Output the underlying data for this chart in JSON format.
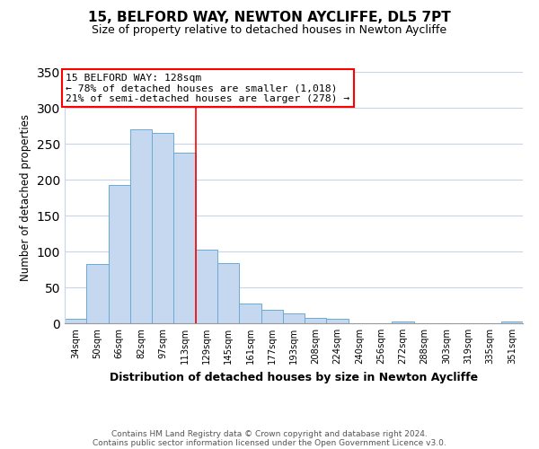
{
  "title": "15, BELFORD WAY, NEWTON AYCLIFFE, DL5 7PT",
  "subtitle": "Size of property relative to detached houses in Newton Aycliffe",
  "xlabel": "Distribution of detached houses by size in Newton Aycliffe",
  "ylabel": "Number of detached properties",
  "bar_labels": [
    "34sqm",
    "50sqm",
    "66sqm",
    "82sqm",
    "97sqm",
    "113sqm",
    "129sqm",
    "145sqm",
    "161sqm",
    "177sqm",
    "193sqm",
    "208sqm",
    "224sqm",
    "240sqm",
    "256sqm",
    "272sqm",
    "288sqm",
    "303sqm",
    "319sqm",
    "335sqm",
    "351sqm"
  ],
  "bar_values": [
    6,
    83,
    193,
    270,
    265,
    237,
    103,
    84,
    27,
    19,
    14,
    7,
    6,
    0,
    0,
    2,
    0,
    0,
    0,
    0,
    2
  ],
  "bar_color": "#c5d8f0",
  "bar_edge_color": "#6aaad4",
  "vline_x": 5.5,
  "vline_color": "red",
  "annotation_title": "15 BELFORD WAY: 128sqm",
  "annotation_line1": "← 78% of detached houses are smaller (1,018)",
  "annotation_line2": "21% of semi-detached houses are larger (278) →",
  "ylim": [
    0,
    350
  ],
  "yticks": [
    0,
    50,
    100,
    150,
    200,
    250,
    300,
    350
  ],
  "footer_line1": "Contains HM Land Registry data © Crown copyright and database right 2024.",
  "footer_line2": "Contains public sector information licensed under the Open Government Licence v3.0.",
  "bg_color": "#ffffff",
  "grid_color": "#c8d4e8"
}
